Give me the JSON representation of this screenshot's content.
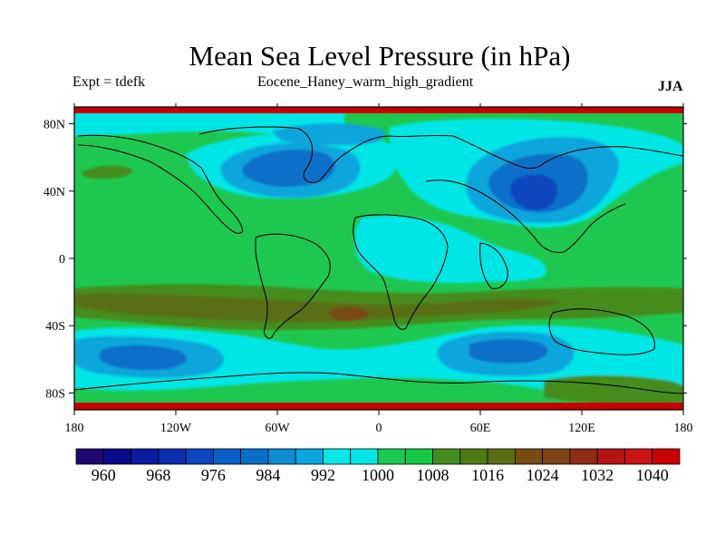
{
  "header": {
    "title": "Mean Sea Level Pressure (in hPa)",
    "left_label": "Expt = tdefk",
    "center_label": "Eocene_Haney_warm_high_gradient",
    "right_label": "JJA"
  },
  "map": {
    "lon_ticks": [
      "180",
      "120W",
      "60W",
      "0",
      "60E",
      "120E",
      "180"
    ],
    "lat_ticks": [
      "80N",
      "40N",
      "0",
      "40S",
      "80S"
    ],
    "lon_range": [
      -180,
      180
    ],
    "lat_range": [
      -90,
      90
    ],
    "field": "mean sea level pressure",
    "units": "hPa"
  },
  "colorbar": {
    "labels": [
      "960",
      "968",
      "976",
      "984",
      "992",
      "1000",
      "1008",
      "1016",
      "1024",
      "1032",
      "1040"
    ],
    "levels": [
      960,
      964,
      968,
      972,
      976,
      980,
      984,
      988,
      992,
      996,
      1000,
      1004,
      1008,
      1012,
      1016,
      1020,
      1024,
      1028,
      1032,
      1036,
      1040
    ],
    "colors": [
      "#1e0a6e",
      "#0a0a8c",
      "#0b1c9e",
      "#0a2eb0",
      "#0a46be",
      "#0a5ec8",
      "#0a6fc8",
      "#0d8cd2",
      "#08a6dc",
      "#0be6e6",
      "#00e6e6",
      "#1ec850",
      "#14c846",
      "#448c1e",
      "#4f7a14",
      "#5a6e14",
      "#784b14",
      "#7d4314",
      "#8c2d14",
      "#b41414",
      "#c81414",
      "#c80000"
    ]
  }
}
